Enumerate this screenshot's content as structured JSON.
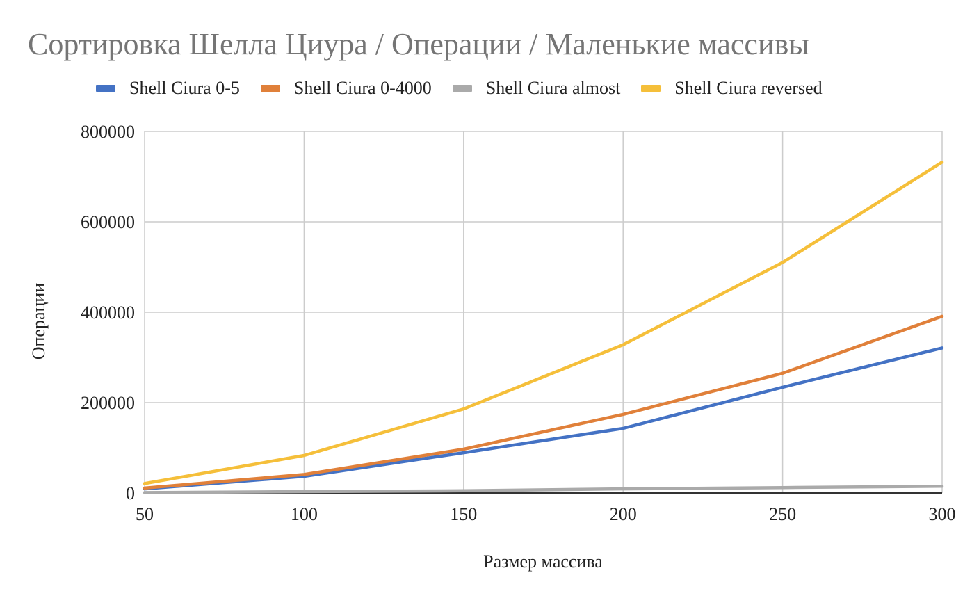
{
  "chart_data": {
    "type": "line",
    "title": "Сортировка Шелла Циура / Операции / Маленькие массивы",
    "xlabel": "Размер массива",
    "ylabel": "Операции",
    "x": [
      50,
      100,
      150,
      200,
      250,
      300
    ],
    "x_tick_labels": [
      "50",
      "100",
      "150",
      "200",
      "250",
      "300"
    ],
    "y_tick_labels": [
      "0",
      "200000",
      "400000",
      "600000",
      "800000"
    ],
    "y_ticks": [
      0,
      200000,
      400000,
      600000,
      800000
    ],
    "xlim": [
      50,
      300
    ],
    "ylim": [
      0,
      800000
    ],
    "grid": true,
    "legend_position": "top",
    "series": [
      {
        "name": "Shell Ciura 0-5",
        "color": "#4472C4",
        "values": [
          9000,
          37000,
          89000,
          143000,
          234000,
          321000
        ]
      },
      {
        "name": "Shell Ciura 0-4000",
        "color": "#E0803A",
        "values": [
          11000,
          41000,
          97000,
          174000,
          265000,
          391000
        ]
      },
      {
        "name": "Shell Ciura almost",
        "color": "#AAAAAA",
        "values": [
          1000,
          3000,
          5000,
          9000,
          12000,
          15000
        ]
      },
      {
        "name": "Shell Ciura reversed",
        "color": "#F5BF3A",
        "values": [
          21000,
          83000,
          186000,
          328000,
          510000,
          732000
        ]
      }
    ]
  }
}
